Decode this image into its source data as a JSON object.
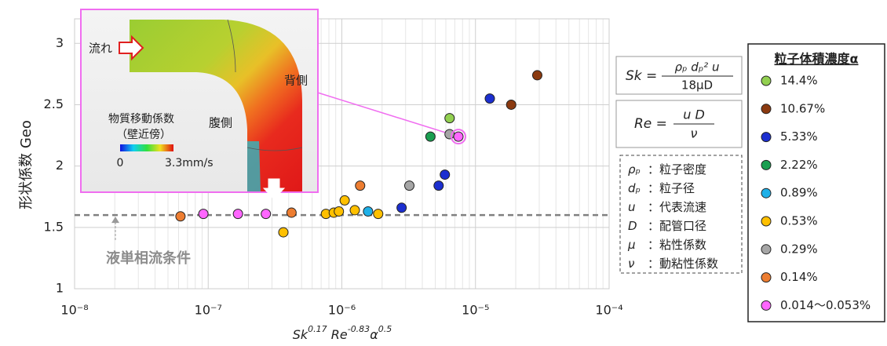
{
  "chart_data": {
    "type": "scatter",
    "ylabel": "形状係数 Geo",
    "xlabel": [
      "Sk",
      "0.17",
      " Re",
      "-0.83",
      "α",
      "0.5"
    ],
    "xlim": [
      1e-08,
      0.0001
    ],
    "ylim": [
      1,
      3.2
    ],
    "log_x": true,
    "grid": true,
    "xticks": [
      {
        "value": 1e-08,
        "label": "10⁻⁸"
      },
      {
        "value": 1e-07,
        "label": "10⁻⁷"
      },
      {
        "value": 1e-06,
        "label": "10⁻⁶"
      },
      {
        "value": 1e-05,
        "label": "10⁻⁵"
      },
      {
        "value": 0.0001,
        "label": "10⁻⁴"
      }
    ],
    "yticks": [
      1,
      1.5,
      2,
      2.5,
      3
    ],
    "reference_line": {
      "value": 1.6,
      "label": "液単相流条件"
    },
    "legend_title": "粒子体積濃度α",
    "highlight": {
      "series": 8,
      "point": 3
    },
    "series": [
      {
        "name": "14.4%",
        "color": "#92d050",
        "x": [
          6.4e-06
        ],
        "values": [
          2.39
        ]
      },
      {
        "name": "10.67%",
        "color": "#8b3a10",
        "x": [
          1.85e-05,
          2.9e-05
        ],
        "values": [
          2.5,
          2.74
        ]
      },
      {
        "name": "5.33%",
        "color": "#1c2fd0",
        "x": [
          1.28e-05,
          5.9e-06,
          5.3e-06,
          2.8e-06
        ],
        "values": [
          2.55,
          1.93,
          1.84,
          1.66
        ]
      },
      {
        "name": "2.22%",
        "color": "#1a9e50",
        "x": [
          4.6e-06
        ],
        "values": [
          2.24
        ]
      },
      {
        "name": "0.89%",
        "color": "#1eb0e8",
        "x": [
          1.57e-06
        ],
        "values": [
          1.63
        ]
      },
      {
        "name": "0.53%",
        "color": "#ffc000",
        "x": [
          1.05e-06,
          7.6e-07,
          8.7e-07,
          9.5e-07,
          1.25e-06,
          1.87e-06,
          3.65e-07
        ],
        "values": [
          1.72,
          1.61,
          1.62,
          1.63,
          1.64,
          1.61,
          1.46
        ]
      },
      {
        "name": "0.29%",
        "color": "#a6a6a6",
        "x": [
          3.2e-06,
          6.4e-06
        ],
        "values": [
          1.84,
          2.26
        ]
      },
      {
        "name": "0.14%",
        "color": "#ed7d31",
        "x": [
          1.37e-06,
          4.2e-07,
          6.2e-08
        ],
        "values": [
          1.84,
          1.62,
          1.59
        ]
      },
      {
        "name": "0.014〜0.053%",
        "color": "#ff66ff",
        "x": [
          9.2e-08,
          1.67e-07,
          2.7e-07,
          7.45e-06
        ],
        "values": [
          1.61,
          1.61,
          1.61,
          2.24
        ]
      }
    ]
  },
  "inset": {
    "flow": "流れ",
    "back": "背側",
    "belly": "腹側",
    "colorbar_title": "物質移動係数",
    "colorbar_subtitle": "（壁近傍）",
    "colorbar_min": "0",
    "colorbar_max": "3.3mm/s"
  },
  "formulas": {
    "sk": {
      "lhs": "Sk =",
      "numerator": "ρₚ  dₚ² u",
      "denominator": "18μD"
    },
    "re": {
      "lhs": "Re =",
      "numerator": "u D",
      "denominator": "ν"
    }
  },
  "definitions": [
    {
      "symbol": "ρₚ",
      "desc": "：粒子密度"
    },
    {
      "symbol": "dₚ",
      "desc": "：粒子径"
    },
    {
      "symbol": "u",
      "desc": "：代表流速"
    },
    {
      "symbol": "D",
      "desc": "：配管口径"
    },
    {
      "symbol": "μ",
      "desc": "：粘性係数"
    },
    {
      "symbol": "ν",
      "desc": "：動粘性係数"
    }
  ]
}
